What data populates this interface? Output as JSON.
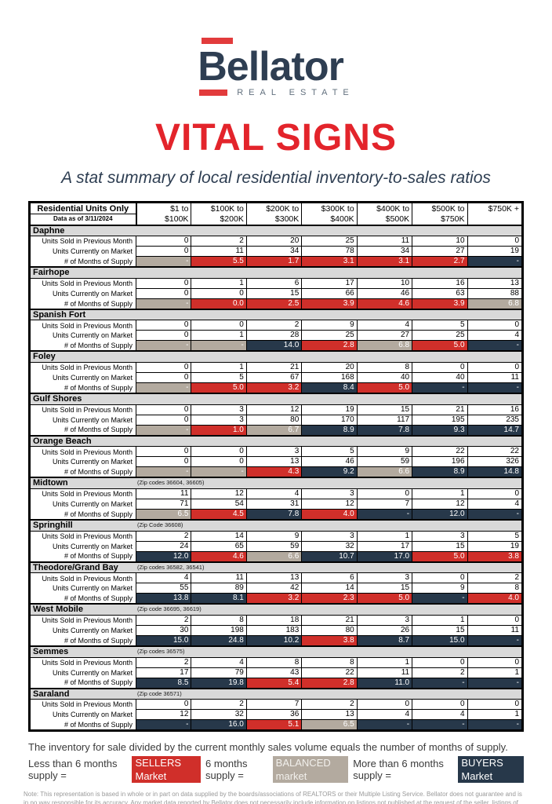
{
  "brand": {
    "name": "Bellator",
    "tagline": "REAL ESTATE",
    "navy": "#2e3e52",
    "red": "#e23b3c"
  },
  "title": "VITAL SIGNS",
  "subtitle": "A stat summary of local residential inventory-to-sales ratios",
  "colors": {
    "sellers_red": "#d02f2a",
    "balanced_tan": "#b3aa9f",
    "buyers_navy": "#27384a",
    "region_header_gray": "#d9d9d9",
    "title_red": "#e3242b"
  },
  "table": {
    "corner": {
      "line1": "Residential Units Only",
      "line2": "Data as of 3/11/2024"
    },
    "columns": [
      {
        "line1": "$1 to",
        "line2": "$100K"
      },
      {
        "line1": "$100K to",
        "line2": "$200K"
      },
      {
        "line1": "$200K to",
        "line2": "$300K"
      },
      {
        "line1": "$300K to",
        "line2": "$400K"
      },
      {
        "line1": "$400K to",
        "line2": "$500K"
      },
      {
        "line1": "$500K to",
        "line2": "$750K"
      },
      {
        "line1": "$750K +",
        "line2": ""
      }
    ],
    "row_labels": [
      "Units Sold in Previous Month",
      "Units Currently on Market",
      "# of Months of Supply"
    ],
    "regions": [
      {
        "name": "Daphne",
        "zip_note": "",
        "sold": [
          0,
          2,
          20,
          25,
          11,
          10,
          0
        ],
        "market": [
          0,
          11,
          34,
          78,
          34,
          27,
          19
        ],
        "supply": [
          "-",
          "5.5",
          "1.7",
          "3.1",
          "3.1",
          "2.7",
          "-"
        ],
        "supply_status": [
          "balanced",
          "sellers",
          "sellers",
          "sellers",
          "sellers",
          "sellers",
          "buyers"
        ]
      },
      {
        "name": "Fairhope",
        "zip_note": "",
        "sold": [
          0,
          1,
          6,
          17,
          10,
          16,
          13
        ],
        "market": [
          0,
          0,
          15,
          66,
          46,
          63,
          88
        ],
        "supply": [
          "-",
          "0.0",
          "2.5",
          "3.9",
          "4.6",
          "3.9",
          "6.8"
        ],
        "supply_status": [
          "balanced",
          "sellers",
          "sellers",
          "sellers",
          "sellers",
          "sellers",
          "balanced"
        ]
      },
      {
        "name": "Spanish Fort",
        "zip_note": "",
        "sold": [
          0,
          0,
          2,
          9,
          4,
          5,
          0
        ],
        "market": [
          0,
          1,
          28,
          25,
          27,
          25,
          4
        ],
        "supply": [
          "-",
          "-",
          "14.0",
          "2.8",
          "6.8",
          "5.0",
          "-"
        ],
        "supply_status": [
          "balanced",
          "balanced",
          "buyers",
          "sellers",
          "balanced",
          "sellers",
          "buyers"
        ]
      },
      {
        "name": "Foley",
        "zip_note": "",
        "sold": [
          0,
          1,
          21,
          20,
          8,
          0,
          0
        ],
        "market": [
          0,
          5,
          67,
          168,
          40,
          40,
          11
        ],
        "supply": [
          "-",
          "5.0",
          "3.2",
          "8.4",
          "5.0",
          "-",
          "-"
        ],
        "supply_status": [
          "balanced",
          "sellers",
          "sellers",
          "buyers",
          "sellers",
          "buyers",
          "buyers"
        ]
      },
      {
        "name": "Gulf Shores",
        "zip_note": "",
        "sold": [
          0,
          3,
          12,
          19,
          15,
          21,
          16
        ],
        "market": [
          0,
          3,
          80,
          170,
          117,
          195,
          235
        ],
        "supply": [
          "-",
          "1.0",
          "6.7",
          "8.9",
          "7.8",
          "9.3",
          "14.7"
        ],
        "supply_status": [
          "balanced",
          "sellers",
          "balanced",
          "buyers",
          "buyers",
          "buyers",
          "buyers"
        ]
      },
      {
        "name": "Orange Beach",
        "zip_note": "",
        "sold": [
          0,
          0,
          3,
          5,
          9,
          22,
          22
        ],
        "market": [
          0,
          0,
          13,
          46,
          59,
          196,
          326
        ],
        "supply": [
          "-",
          "-",
          "4.3",
          "9.2",
          "6.6",
          "8.9",
          "14.8"
        ],
        "supply_status": [
          "balanced",
          "balanced",
          "sellers",
          "buyers",
          "balanced",
          "buyers",
          "buyers"
        ]
      },
      {
        "name": "Midtown",
        "zip_note": "(Zip codes 36604, 36605)",
        "sold": [
          11,
          12,
          4,
          3,
          0,
          1,
          0
        ],
        "market": [
          71,
          54,
          31,
          12,
          7,
          12,
          4
        ],
        "supply": [
          "6.5",
          "4.5",
          "7.8",
          "4.0",
          "-",
          "12.0",
          "-"
        ],
        "supply_status": [
          "balanced",
          "sellers",
          "buyers",
          "sellers",
          "buyers",
          "buyers",
          "buyers"
        ]
      },
      {
        "name": "Springhill",
        "zip_note": "(Zip Code 36608)",
        "sold": [
          2,
          14,
          9,
          3,
          1,
          3,
          5
        ],
        "market": [
          24,
          65,
          59,
          32,
          17,
          15,
          19
        ],
        "supply": [
          "12.0",
          "4.6",
          "6.6",
          "10.7",
          "17.0",
          "5.0",
          "3.8"
        ],
        "supply_status": [
          "buyers",
          "sellers",
          "balanced",
          "buyers",
          "buyers",
          "sellers",
          "sellers"
        ]
      },
      {
        "name": "Theodore/Grand Bay",
        "zip_note": "(Zip codes 36582, 36541)",
        "sold": [
          4,
          11,
          13,
          6,
          3,
          0,
          2
        ],
        "market": [
          55,
          89,
          42,
          14,
          15,
          9,
          8
        ],
        "supply": [
          "13.8",
          "8.1",
          "3.2",
          "2.3",
          "5.0",
          "-",
          "4.0"
        ],
        "supply_status": [
          "buyers",
          "buyers",
          "sellers",
          "sellers",
          "sellers",
          "buyers",
          "sellers"
        ]
      },
      {
        "name": "West Mobile",
        "zip_note": "(Zip code 36695, 36619)",
        "sold": [
          2,
          8,
          18,
          21,
          3,
          1,
          0
        ],
        "market": [
          30,
          198,
          183,
          80,
          26,
          15,
          11
        ],
        "supply": [
          "15.0",
          "24.8",
          "10.2",
          "3.8",
          "8.7",
          "15.0",
          "-"
        ],
        "supply_status": [
          "buyers",
          "buyers",
          "buyers",
          "sellers",
          "buyers",
          "buyers",
          "buyers"
        ]
      },
      {
        "name": "Semmes",
        "zip_note": "(Zip codes 36575)",
        "sold": [
          2,
          4,
          8,
          8,
          1,
          0,
          0
        ],
        "market": [
          17,
          79,
          43,
          22,
          11,
          2,
          1
        ],
        "supply": [
          "8.5",
          "19.8",
          "5.4",
          "2.8",
          "11.0",
          "-",
          "-"
        ],
        "supply_status": [
          "buyers",
          "buyers",
          "sellers",
          "sellers",
          "buyers",
          "buyers",
          "buyers"
        ]
      },
      {
        "name": "Saraland",
        "zip_note": "(Zip code 36571)",
        "sold": [
          0,
          2,
          7,
          2,
          0,
          0,
          0
        ],
        "market": [
          12,
          32,
          36,
          13,
          4,
          4,
          1
        ],
        "supply": [
          "-",
          "16.0",
          "5.1",
          "6.5",
          "-",
          "-",
          "-"
        ],
        "supply_status": [
          "buyers",
          "buyers",
          "sellers",
          "balanced",
          "buyers",
          "buyers",
          "buyers"
        ]
      }
    ]
  },
  "footer": {
    "line1": "The inventory for sale divided by the current monthly sales volume equals the number of months of supply.",
    "legend": [
      {
        "prefix": "Less than 6 months supply =",
        "badge": "SELLERS Market",
        "status": "sellers"
      },
      {
        "prefix": "6 months supply =",
        "badge": "BALANCED market",
        "status": "balanced"
      },
      {
        "prefix": "More than 6 months supply =",
        "badge": "BUYERS Market",
        "status": "buyers"
      }
    ],
    "note": "Note: This representation is based in whole or in part on data supplied by the boards/associations of REALTORS or their Multiple Listing Service. Bellator does not guarantee and is in no way responsible for its accuracy. Any market data reported by Bellator does not necessarily include information on listings not published at the request of the seller, listings of brokers who are not members of a local board/association or MLS, unlisted properties, rental properties, etc. The statistics included in this report reflect the residential sales of houses, condominiums, and town homes."
  }
}
